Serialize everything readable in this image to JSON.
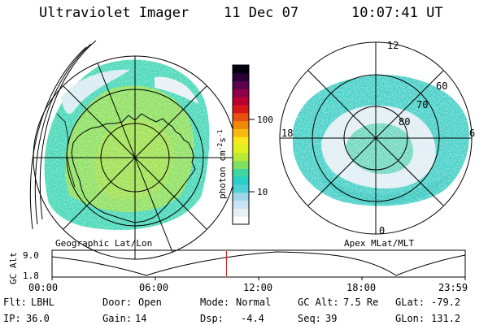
{
  "header": {
    "instrument": "Ultraviolet Imager",
    "date": "11 Dec 07",
    "time": "10:07:41 UT"
  },
  "colorbar": {
    "label": "photon cm",
    "label_exp1": "-2",
    "label_s": "s",
    "label_exp2": "-1",
    "ticks": [
      "100",
      "10"
    ],
    "colors": [
      "#ffffff",
      "#e8f0f6",
      "#c8e2f0",
      "#9fd6ea",
      "#4fd0d8",
      "#28d0c8",
      "#3fd6a0",
      "#7fe060",
      "#b8e838",
      "#e0f020",
      "#f8e818",
      "#f8b810",
      "#f08808",
      "#e85010",
      "#d81818",
      "#b80030",
      "#8c0048",
      "#5a0050",
      "#2a0038",
      "#000010"
    ]
  },
  "left_panel": {
    "caption": "Geographic Lat/Lon"
  },
  "right_panel": {
    "caption": "Apex MLat/MLT",
    "mlt_labels": {
      "top": "12",
      "left": "18",
      "right": "6",
      "bottom": "0"
    },
    "mlat_labels": [
      "60",
      "70",
      "80"
    ]
  },
  "timeline": {
    "ylabel": "GC Alt",
    "yticks": [
      "9.0",
      "1.8"
    ],
    "xticks": [
      "00:00",
      "06:00",
      "12:00",
      "18:00",
      "23:59"
    ],
    "current_fraction": 0.4221
  },
  "info": {
    "row1": [
      {
        "label": "Flt:",
        "value": "LBHL"
      },
      {
        "label": "Door:",
        "value": "Open"
      },
      {
        "label": "Mode:",
        "value": "Normal"
      },
      {
        "label": "GC Alt:",
        "value": "7.5 Re"
      },
      {
        "label": "GLat:",
        "value": "-79.2"
      }
    ],
    "row2": [
      {
        "label": "IP:",
        "value": "36.0"
      },
      {
        "label": "Gain:",
        "value": "14"
      },
      {
        "label": "Dsp:",
        "value": "-4.4"
      },
      {
        "label": "Seq:",
        "value": "39"
      },
      {
        "label": "GLon:",
        "value": "131.2"
      }
    ]
  }
}
